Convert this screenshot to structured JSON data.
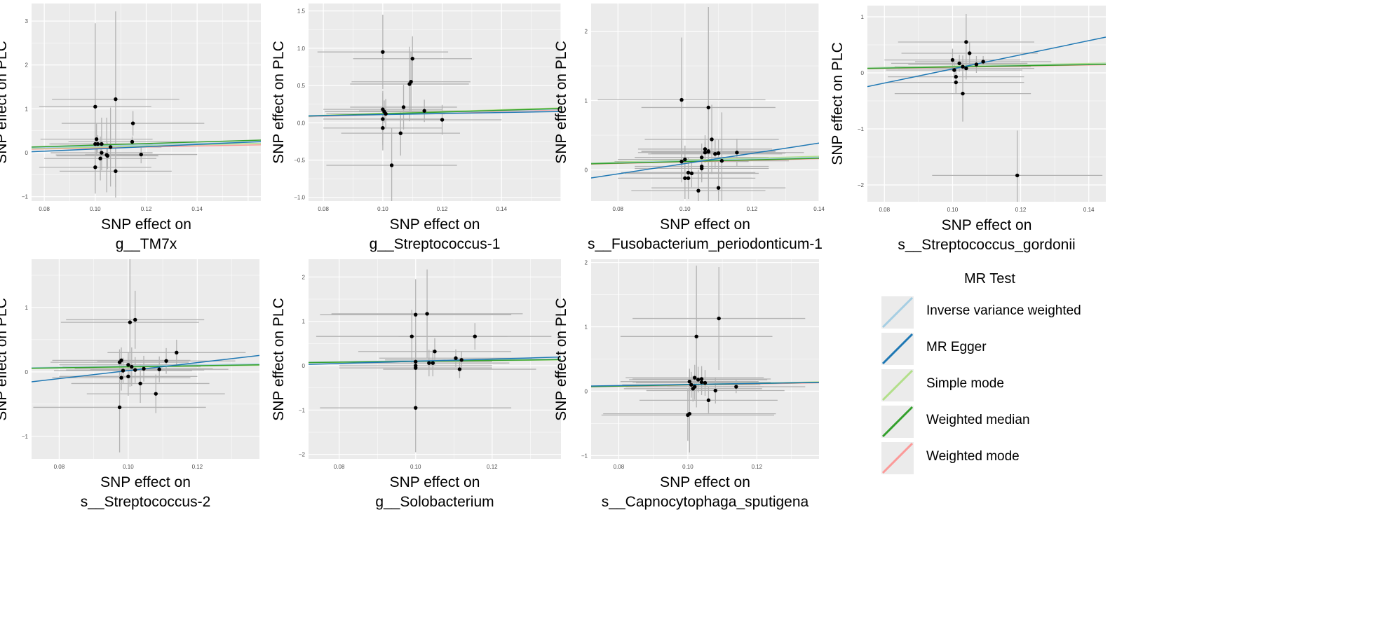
{
  "chart_data": [
    {
      "type": "scatter",
      "ylabel": "SNP effect on PLC",
      "xlabel_lines": [
        "SNP effect on",
        "g__TM7x"
      ],
      "xlim": [
        0.075,
        0.165
      ],
      "ylim": [
        -1.1,
        3.4
      ],
      "xticks": [
        0.08,
        0.1,
        0.12,
        0.14
      ],
      "yticks": [
        -1,
        0,
        1,
        2,
        3
      ],
      "points": [
        [
          0.1,
          1.05,
          0.022,
          1.9
        ],
        [
          0.1005,
          0.31,
          0.022,
          0.35
        ],
        [
          0.1,
          0.2,
          0.018,
          0.5
        ],
        [
          0.101,
          0.2,
          0.015,
          0.2
        ],
        [
          0.1025,
          0.2,
          0.02,
          0.6
        ],
        [
          0.1025,
          0.0,
          0.02,
          0.2
        ],
        [
          0.102,
          -0.13,
          0.022,
          0.5
        ],
        [
          0.1045,
          -0.05,
          0.02,
          0.85
        ],
        [
          0.1048,
          -0.07,
          0.02,
          0.3
        ],
        [
          0.106,
          0.13,
          0.02,
          0.9
        ],
        [
          0.108,
          1.22,
          0.025,
          2.0
        ],
        [
          0.108,
          -0.42,
          0.022,
          0.6
        ],
        [
          0.1145,
          0.25,
          0.025,
          0.12
        ],
        [
          0.1148,
          0.67,
          0.028,
          0.28
        ],
        [
          0.118,
          -0.04,
          0.022,
          0.2
        ],
        [
          0.1,
          -0.33,
          0.022,
          0.6
        ]
      ],
      "lines": {
        "ivw": [
          0,
          1.5
        ],
        "egger": [
          -0.17,
          2.57
        ],
        "simple_mode": [
          0,
          1.3
        ],
        "weighted_median": [
          0,
          1.75
        ],
        "weighted_mode": [
          0,
          1.1
        ]
      }
    },
    {
      "type": "scatter",
      "ylabel": "SNP effect on PLC",
      "xlabel_lines": [
        "SNP effect on",
        "g__Streptococcus-1"
      ],
      "xlim": [
        0.075,
        0.16
      ],
      "ylim": [
        -1.05,
        1.6
      ],
      "xticks": [
        0.08,
        0.1,
        0.12,
        0.14
      ],
      "yticks": [
        -1.0,
        -0.5,
        0.0,
        0.5,
        1.0,
        1.5
      ],
      "points": [
        [
          0.1,
          0.95,
          0.022,
          0.5
        ],
        [
          0.1,
          0.18,
          0.02,
          0.25
        ],
        [
          0.1005,
          0.15,
          0.02,
          0.15
        ],
        [
          0.101,
          0.12,
          0.02,
          0.2
        ],
        [
          0.1,
          0.05,
          0.02,
          0.35
        ],
        [
          0.1,
          -0.07,
          0.02,
          0.3
        ],
        [
          0.103,
          -0.57,
          0.022,
          0.5
        ],
        [
          0.106,
          -0.14,
          0.02,
          0.3
        ],
        [
          0.107,
          0.21,
          0.018,
          0.3
        ],
        [
          0.109,
          0.52,
          0.02,
          0.5
        ],
        [
          0.1095,
          0.55,
          0.02,
          0.4
        ],
        [
          0.11,
          0.86,
          0.02,
          0.3
        ],
        [
          0.114,
          0.16,
          0.022,
          0.15
        ],
        [
          0.12,
          0.04,
          0.02,
          0.2
        ]
      ],
      "lines": {
        "ivw": [
          0,
          1.15
        ],
        "egger": [
          0.04,
          0.7
        ],
        "simple_mode": [
          0,
          1.25
        ],
        "weighted_median": [
          0,
          1.2
        ],
        "weighted_mode": [
          0,
          1.1
        ]
      }
    },
    {
      "type": "scatter",
      "ylabel": "SNP effect on PLC",
      "xlabel_lines": [
        "SNP effect on",
        "s__Fusobacterium_periodonticum-1"
      ],
      "xlim": [
        0.072,
        0.14
      ],
      "ylim": [
        -0.45,
        2.4
      ],
      "xticks": [
        0.08,
        0.1,
        0.12,
        0.14
      ],
      "yticks": [
        0,
        1,
        2
      ],
      "points": [
        [
          0.099,
          1.01,
          0.025,
          0.9
        ],
        [
          0.099,
          0.12,
          0.02,
          0.3
        ],
        [
          0.1,
          0.15,
          0.02,
          0.2
        ],
        [
          0.1,
          -0.12,
          0.02,
          0.3
        ],
        [
          0.101,
          -0.12,
          0.02,
          0.3
        ],
        [
          0.101,
          -0.04,
          0.02,
          0.2
        ],
        [
          0.102,
          -0.05,
          0.02,
          0.2
        ],
        [
          0.104,
          -0.3,
          0.02,
          0.3
        ],
        [
          0.105,
          0.02,
          0.02,
          0.2
        ],
        [
          0.105,
          0.05,
          0.02,
          0.2
        ],
        [
          0.105,
          0.18,
          0.02,
          0.2
        ],
        [
          0.106,
          0.3,
          0.02,
          0.2
        ],
        [
          0.106,
          0.25,
          0.02,
          0.15
        ],
        [
          0.107,
          0.26,
          0.02,
          0.2
        ],
        [
          0.107,
          0.27,
          0.02,
          0.2
        ],
        [
          0.107,
          0.9,
          0.02,
          1.45
        ],
        [
          0.108,
          0.44,
          0.02,
          0.5
        ],
        [
          0.109,
          0.23,
          0.02,
          0.2
        ],
        [
          0.11,
          0.24,
          0.02,
          0.2
        ],
        [
          0.11,
          -0.26,
          0.02,
          0.3
        ],
        [
          0.111,
          0.13,
          0.02,
          0.7
        ],
        [
          0.1155,
          0.25,
          0.02,
          0.2
        ]
      ],
      "lines": {
        "ivw": [
          0,
          1.3
        ],
        "egger": [
          -0.65,
          7.4
        ],
        "simple_mode": [
          0,
          1.4
        ],
        "weighted_median": [
          0,
          1.2
        ],
        "weighted_mode": [
          0,
          1.15
        ]
      }
    },
    {
      "type": "scatter",
      "ylabel": "SNP effect on PLC",
      "xlabel_lines": [
        "SNP effect on",
        "s__Streptococcus_gordonii"
      ],
      "xlim": [
        0.075,
        0.145
      ],
      "ylim": [
        -2.3,
        1.2
      ],
      "xticks": [
        0.08,
        0.1,
        0.12,
        0.14
      ],
      "yticks": [
        -2,
        -1,
        0,
        1
      ],
      "points": [
        [
          0.1,
          0.23,
          0.02,
          0.2
        ],
        [
          0.1005,
          0.05,
          0.02,
          0.15
        ],
        [
          0.101,
          -0.07,
          0.02,
          0.15
        ],
        [
          0.101,
          -0.17,
          0.02,
          0.2
        ],
        [
          0.102,
          0.17,
          0.02,
          0.15
        ],
        [
          0.103,
          -0.37,
          0.02,
          0.5
        ],
        [
          0.103,
          0.11,
          0.02,
          0.2
        ],
        [
          0.104,
          0.08,
          0.02,
          0.2
        ],
        [
          0.104,
          0.55,
          0.02,
          0.5
        ],
        [
          0.105,
          0.35,
          0.02,
          0.2
        ],
        [
          0.107,
          0.15,
          0.02,
          0.15
        ],
        [
          0.109,
          0.2,
          0.02,
          0.1
        ],
        [
          0.119,
          -1.83,
          0.025,
          0.8
        ]
      ],
      "lines": {
        "ivw": [
          0,
          1.1
        ],
        "egger": [
          -1.19,
          12.6
        ],
        "simple_mode": [
          0,
          1.2
        ],
        "weighted_median": [
          0,
          1.05
        ],
        "weighted_mode": [
          0,
          1.0
        ]
      }
    },
    {
      "type": "scatter",
      "ylabel": "SNP effect on PLC",
      "xlabel_lines": [
        "SNP effect on",
        "s__Streptococcus-2"
      ],
      "xlim": [
        0.072,
        0.138
      ],
      "ylim": [
        -1.35,
        1.75
      ],
      "xticks": [
        0.08,
        0.1,
        0.12
      ],
      "yticks": [
        -1,
        0,
        1
      ],
      "points": [
        [
          0.0975,
          -0.55,
          0.025,
          0.7
        ],
        [
          0.0975,
          0.15,
          0.02,
          0.2
        ],
        [
          0.098,
          0.18,
          0.02,
          0.2
        ],
        [
          0.098,
          -0.09,
          0.02,
          0.2
        ],
        [
          0.0985,
          0.02,
          0.02,
          0.2
        ],
        [
          0.1,
          0.11,
          0.02,
          0.2
        ],
        [
          0.1005,
          0.77,
          0.02,
          1.0
        ],
        [
          0.1,
          -0.07,
          0.02,
          0.3
        ],
        [
          0.101,
          0.08,
          0.02,
          0.3
        ],
        [
          0.102,
          0.03,
          0.02,
          0.2
        ],
        [
          0.102,
          0.81,
          0.02,
          0.45
        ],
        [
          0.1035,
          -0.18,
          0.02,
          0.3
        ],
        [
          0.1045,
          0.05,
          0.02,
          0.2
        ],
        [
          0.108,
          -0.34,
          0.02,
          0.3
        ],
        [
          0.109,
          0.04,
          0.02,
          0.2
        ],
        [
          0.111,
          0.17,
          0.02,
          0.2
        ],
        [
          0.114,
          0.3,
          0.02,
          0.2
        ]
      ],
      "lines": {
        "ivw": [
          0,
          0.9
        ],
        "egger": [
          -0.6,
          6.2
        ],
        "simple_mode": [
          0,
          0.75
        ],
        "weighted_median": [
          0,
          0.8
        ],
        "weighted_mode": [
          0,
          0.85
        ]
      }
    },
    {
      "type": "scatter",
      "ylabel": "SNP effect on PLC",
      "xlabel_lines": [
        "SNP effect on",
        "g__Solobacterium"
      ],
      "xlim": [
        0.072,
        0.138
      ],
      "ylim": [
        -2.1,
        2.4
      ],
      "xticks": [
        0.08,
        0.1,
        0.12
      ],
      "yticks": [
        -2,
        -1,
        0,
        1,
        2
      ],
      "points": [
        [
          0.099,
          0.66,
          0.025,
          0.6
        ],
        [
          0.1,
          1.15,
          0.025,
          0.8
        ],
        [
          0.1,
          0.09,
          0.02,
          0.5
        ],
        [
          0.1,
          -0.05,
          0.02,
          0.5
        ],
        [
          0.1,
          -0.95,
          0.025,
          1.0
        ],
        [
          0.1,
          0.0,
          0.02,
          0.4
        ],
        [
          0.103,
          1.17,
          0.025,
          1.0
        ],
        [
          0.1035,
          0.06,
          0.02,
          0.3
        ],
        [
          0.1045,
          0.06,
          0.02,
          0.3
        ],
        [
          0.105,
          0.32,
          0.02,
          0.3
        ],
        [
          0.1105,
          0.17,
          0.02,
          0.2
        ],
        [
          0.1115,
          -0.08,
          0.02,
          0.2
        ],
        [
          0.112,
          0.13,
          0.02,
          0.2
        ],
        [
          0.1155,
          0.66,
          0.02,
          0.3
        ]
      ],
      "lines": {
        "ivw": [
          0,
          1.1
        ],
        "egger": [
          -0.15,
          2.5
        ],
        "simple_mode": [
          0,
          0.95
        ],
        "weighted_median": [
          0,
          1.0
        ],
        "weighted_mode": [
          0,
          1.05
        ]
      }
    },
    {
      "type": "scatter",
      "ylabel": "SNP effect on PLC",
      "xlabel_lines": [
        "SNP effect on",
        "s__Capnocytophaga_sputigena"
      ],
      "xlim": [
        0.072,
        0.138
      ],
      "ylim": [
        -1.05,
        2.05
      ],
      "xticks": [
        0.08,
        0.1,
        0.12
      ],
      "yticks": [
        -1,
        0,
        1,
        2
      ],
      "points": [
        [
          0.1,
          -0.37,
          0.025,
          0.4
        ],
        [
          0.1005,
          -0.35,
          0.025,
          0.6
        ],
        [
          0.1005,
          0.15,
          0.02,
          0.2
        ],
        [
          0.101,
          0.1,
          0.02,
          0.2
        ],
        [
          0.1015,
          0.04,
          0.02,
          0.2
        ],
        [
          0.102,
          0.21,
          0.02,
          0.2
        ],
        [
          0.102,
          0.07,
          0.02,
          0.2
        ],
        [
          0.103,
          0.18,
          0.02,
          0.2
        ],
        [
          0.1025,
          0.85,
          0.022,
          1.1
        ],
        [
          0.104,
          0.19,
          0.02,
          0.2
        ],
        [
          0.104,
          0.14,
          0.02,
          0.2
        ],
        [
          0.105,
          0.13,
          0.02,
          0.2
        ],
        [
          0.106,
          -0.14,
          0.02,
          0.2
        ],
        [
          0.108,
          0.01,
          0.02,
          0.2
        ],
        [
          0.109,
          1.13,
          0.025,
          0.8
        ],
        [
          0.114,
          0.07,
          0.02,
          0.1
        ]
      ],
      "lines": {
        "ivw": [
          0,
          1.0
        ],
        "egger": [
          0.02,
          0.85
        ],
        "simple_mode": [
          0,
          1.05
        ],
        "weighted_median": [
          0,
          1.0
        ],
        "weighted_mode": [
          0,
          0.95
        ]
      }
    }
  ],
  "legend": {
    "title": "MR Test",
    "placement": "bottom-right",
    "items": [
      {
        "key": "ivw",
        "label": "Inverse variance weighted",
        "color": "#a6cee3"
      },
      {
        "key": "egger",
        "label": "MR Egger",
        "color": "#1f78b4"
      },
      {
        "key": "simple_mode",
        "label": "Simple mode",
        "color": "#b2df8a"
      },
      {
        "key": "weighted_median",
        "label": "Weighted median",
        "color": "#33a02c"
      },
      {
        "key": "weighted_mode",
        "label": "Weighted mode",
        "color": "#fb9a99"
      }
    ]
  },
  "style": {
    "panel_bg": "#ebebeb",
    "grid": "#ffffff",
    "errorbar": "#b3b3b3",
    "point": "#000000"
  }
}
